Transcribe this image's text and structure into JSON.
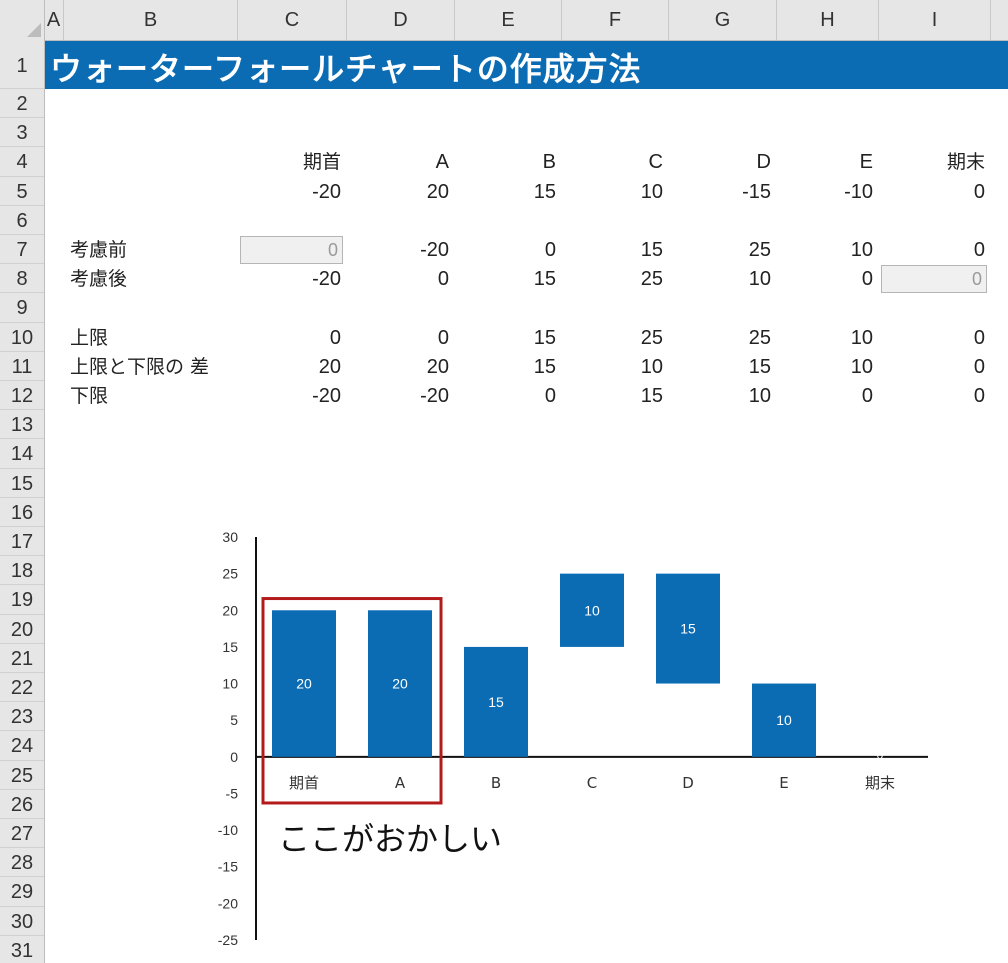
{
  "sheet": {
    "columns": [
      "A",
      "B",
      "C",
      "D",
      "E",
      "F",
      "G",
      "H",
      "I"
    ],
    "rows": [
      "1",
      "2",
      "3",
      "4",
      "5",
      "6",
      "7",
      "8",
      "9",
      "10",
      "11",
      "12",
      "13",
      "14",
      "15",
      "16",
      "17",
      "18",
      "19",
      "20",
      "21",
      "22",
      "23",
      "24",
      "25",
      "26",
      "27",
      "28",
      "29",
      "30",
      "31"
    ],
    "title": "ウォーターフォールチャートの作成方法",
    "header_labels": [
      "期首",
      "A",
      "B",
      "C",
      "D",
      "E",
      "期末"
    ],
    "row5_values": [
      "-20",
      "20",
      "15",
      "10",
      "-15",
      "-10",
      "0"
    ],
    "row7": {
      "label": "考慮前",
      "values": [
        "0",
        "-20",
        "0",
        "15",
        "25",
        "10",
        "0"
      ]
    },
    "row8": {
      "label": "考慮後",
      "values": [
        "-20",
        "0",
        "15",
        "25",
        "10",
        "0",
        "0"
      ]
    },
    "row10": {
      "label": "上限",
      "values": [
        "0",
        "0",
        "15",
        "25",
        "25",
        "10",
        "0"
      ]
    },
    "row11": {
      "label": "上限と下限の 差",
      "values": [
        "20",
        "20",
        "15",
        "10",
        "15",
        "10",
        "0"
      ]
    },
    "row12": {
      "label": "下限",
      "values": [
        "-20",
        "-20",
        "0",
        "15",
        "10",
        "0",
        "0"
      ]
    },
    "annotation": "ここがおかしい"
  },
  "colors": {
    "accent": "#0b6cb4",
    "highlight_box": "#b31b1b"
  },
  "chart_data": {
    "type": "bar",
    "stacked_floating": true,
    "categories": [
      "期首",
      "A",
      "B",
      "C",
      "D",
      "E",
      "期末"
    ],
    "series": [
      {
        "values": [
          0,
          0,
          0,
          15,
          10,
          0,
          0
        ]
      },
      {
        "values": [
          20,
          20,
          15,
          10,
          15,
          10,
          0
        ]
      }
    ],
    "data_labels": [
      "20",
      "20",
      "15",
      "10",
      "15",
      "10",
      "0"
    ],
    "ylim": [
      -25,
      30
    ],
    "yticks": [
      "30",
      "25",
      "20",
      "15",
      "10",
      "5",
      "0",
      "-5",
      "-10",
      "-15",
      "-20",
      "-25"
    ],
    "ytick_values": [
      30,
      25,
      20,
      15,
      10,
      5,
      0,
      -5,
      -10,
      -15,
      -20,
      -25
    ],
    "highlighted_categories": [
      "期首",
      "A"
    ]
  }
}
